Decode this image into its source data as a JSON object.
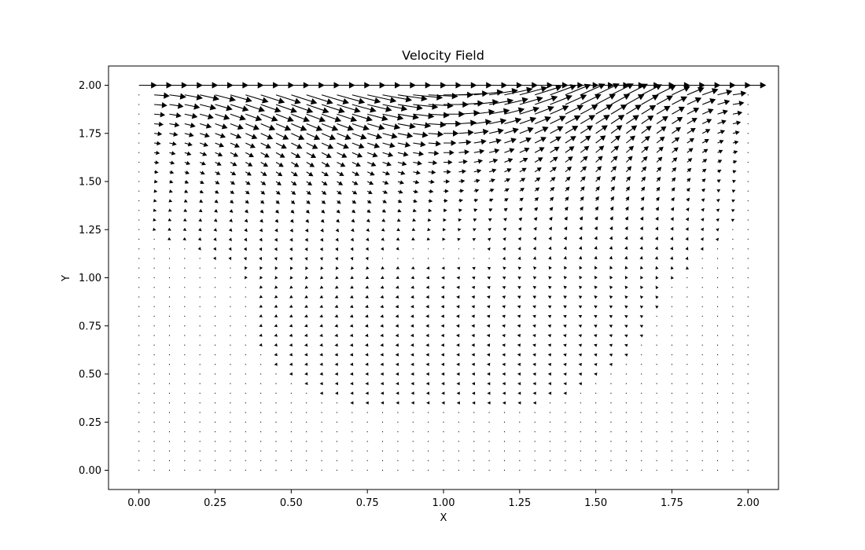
{
  "chart_data": {
    "type": "quiver",
    "title": "Velocity Field",
    "xlabel": "X",
    "ylabel": "Y",
    "xlim": [
      -0.1,
      2.1
    ],
    "ylim": [
      -0.1,
      2.1
    ],
    "xticks": [
      "0.00",
      "0.25",
      "0.50",
      "0.75",
      "1.00",
      "1.25",
      "1.50",
      "1.75",
      "2.00"
    ],
    "yticks": [
      "0.00",
      "0.25",
      "0.50",
      "0.75",
      "1.00",
      "1.25",
      "1.50",
      "1.75",
      "2.00"
    ],
    "grid": false,
    "legend": null,
    "field": {
      "x_range": [
        0,
        2
      ],
      "y_range": [
        0,
        2
      ],
      "nx": 41,
      "ny": 41,
      "description_of_flow": "lid-driven cavity: lid at y=2.00 moves in +x, single clockwise vortex centered near (1.15, 1.25)",
      "lid_velocity": 1.0,
      "vortex_center": [
        1.15,
        1.25
      ]
    },
    "colors": {
      "arrow": "#000000",
      "axes": "#000000",
      "background": "#ffffff"
    }
  }
}
